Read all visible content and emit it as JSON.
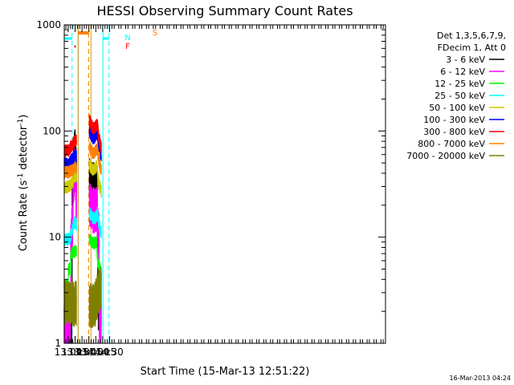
{
  "chart_data": {
    "type": "line",
    "title": "HESSI Observing Summary Count Rates",
    "xlabel": "Start Time (15-Mar-13 12:51:22)",
    "ylabel_main": "Count Rate (s",
    "ylabel_sup1": "-1",
    "ylabel_mid": " detector",
    "ylabel_sup2": "-1",
    "ylabel_end": ")",
    "y_scale": "log",
    "ylim": [
      1,
      1000
    ],
    "y_ticks": [
      {
        "v": 1,
        "label": "1"
      },
      {
        "v": 10,
        "label": "10"
      },
      {
        "v": 100,
        "label": "100"
      },
      {
        "v": 1000,
        "label": "1000"
      }
    ],
    "xlim_min": [
      771.4,
      1470
    ],
    "x_ticks": [
      {
        "m": 780,
        "label": "13:00"
      },
      {
        "m": 795,
        "label": "13:15"
      },
      {
        "m": 810,
        "label": "13:30"
      },
      {
        "m": 825,
        "label": "13:45"
      },
      {
        "m": 840,
        "label": "14:00"
      },
      {
        "m": 855,
        "label": "14:15"
      },
      {
        "m": 870,
        "label": "14:30"
      }
    ],
    "legend_header": [
      "Det 1,3,5,6,7,9,",
      "FDecim 1, Att 0"
    ],
    "series": [
      {
        "name": "3 - 6 keV",
        "color": "#000000",
        "seg1": [
          [
            771.4,
            1.4
          ],
          [
            788,
            1.4
          ],
          [
            788.5,
            15
          ],
          [
            789.5,
            30
          ],
          [
            791,
            38
          ],
          [
            793,
            55
          ],
          [
            795,
            70
          ],
          [
            797,
            45
          ],
          [
            798,
            42
          ]
        ],
        "seg2": [
          [
            826,
            35
          ],
          [
            830,
            32
          ],
          [
            834,
            31
          ],
          [
            838,
            31
          ],
          [
            842,
            32
          ],
          [
            844,
            10
          ],
          [
            845,
            2.5
          ],
          [
            846,
            2.0
          ]
        ],
        "spiky": true
      },
      {
        "name": "6 - 12 keV",
        "color": "#ff00ff",
        "seg1": [
          [
            771.4,
            1.5
          ],
          [
            785,
            1.5
          ],
          [
            785.5,
            10
          ],
          [
            789.5,
            13
          ],
          [
            791,
            30
          ],
          [
            793,
            40
          ],
          [
            795,
            48
          ],
          [
            797,
            25
          ],
          [
            798,
            22
          ]
        ],
        "seg2": [
          [
            826,
            21
          ],
          [
            830,
            19
          ],
          [
            834,
            18
          ],
          [
            838,
            18
          ],
          [
            842,
            18
          ],
          [
            844,
            15
          ],
          [
            845,
            12
          ],
          [
            847,
            10
          ],
          [
            847.5,
            1.5
          ],
          [
            852,
            1.5
          ]
        ],
        "spiky": true
      },
      {
        "name": "12 - 25 keV",
        "color": "#00ff00",
        "seg1": [
          [
            771.4,
            3.5
          ],
          [
            780,
            3.5
          ],
          [
            780.5,
            5
          ],
          [
            785,
            5
          ],
          [
            785.5,
            7
          ],
          [
            798,
            7.5
          ]
        ],
        "seg2": [
          [
            826,
            9.5
          ],
          [
            830,
            9
          ],
          [
            834,
            8.8
          ],
          [
            838,
            8.8
          ],
          [
            842,
            9
          ],
          [
            844,
            6
          ],
          [
            852,
            4.5
          ]
        ],
        "spiky": false
      },
      {
        "name": "25 - 50 keV",
        "color": "#00ffff",
        "seg1": [
          [
            771.4,
            9.5
          ],
          [
            780,
            9.5
          ],
          [
            785,
            10
          ],
          [
            789.5,
            12
          ],
          [
            791,
            13
          ],
          [
            794,
            14
          ],
          [
            798,
            13
          ]
        ],
        "seg2": [
          [
            826,
            17
          ],
          [
            830,
            16
          ],
          [
            834,
            15
          ],
          [
            838,
            15
          ],
          [
            842,
            16
          ],
          [
            844,
            17
          ],
          [
            846,
            14
          ],
          [
            849,
            12
          ],
          [
            852,
            11
          ]
        ],
        "spiky": false
      },
      {
        "name": "50 - 100 keV",
        "color": "#cccc00",
        "seg1": [
          [
            771.4,
            29
          ],
          [
            780,
            30
          ],
          [
            785,
            31
          ],
          [
            789.5,
            33
          ],
          [
            793,
            37
          ],
          [
            798,
            38
          ]
        ],
        "seg2": [
          [
            826,
            48
          ],
          [
            830,
            45
          ],
          [
            834,
            43
          ],
          [
            838,
            44
          ],
          [
            842,
            48
          ],
          [
            844,
            40
          ],
          [
            846,
            33
          ],
          [
            850,
            29
          ],
          [
            852,
            27
          ]
        ],
        "spiky": false
      },
      {
        "name": "100 - 300 keV",
        "color": "#0000ff",
        "seg1": [
          [
            771.4,
            50
          ],
          [
            780,
            48
          ],
          [
            785,
            52
          ],
          [
            789.5,
            55
          ],
          [
            793,
            57
          ],
          [
            798,
            58
          ]
        ],
        "seg2": [
          [
            826,
            100
          ],
          [
            830,
            90
          ],
          [
            834,
            85
          ],
          [
            838,
            88
          ],
          [
            842,
            95
          ],
          [
            844,
            92
          ],
          [
            846,
            75
          ],
          [
            850,
            63
          ],
          [
            852,
            58
          ]
        ],
        "spiky": false
      },
      {
        "name": "300 - 800 keV",
        "color": "#ff0000",
        "seg1": [
          [
            771.4,
            65
          ],
          [
            780,
            65
          ],
          [
            785,
            70
          ],
          [
            789.5,
            75
          ],
          [
            793,
            80
          ],
          [
            798,
            82
          ]
        ],
        "seg2": [
          [
            826,
            128
          ],
          [
            830,
            115
          ],
          [
            834,
            105
          ],
          [
            838,
            108
          ],
          [
            842,
            115
          ],
          [
            844,
            110
          ],
          [
            846,
            90
          ],
          [
            850,
            75
          ],
          [
            852,
            68
          ]
        ],
        "spiky": false
      },
      {
        "name": "800 - 7000 keV",
        "color": "#ff8000",
        "seg1": [
          [
            771.4,
            41
          ],
          [
            780,
            41
          ],
          [
            785,
            42
          ],
          [
            789.5,
            43
          ],
          [
            793,
            45
          ],
          [
            798,
            46
          ]
        ],
        "seg2": [
          [
            826,
            70
          ],
          [
            830,
            65
          ],
          [
            834,
            62
          ],
          [
            838,
            63
          ],
          [
            842,
            68
          ],
          [
            844,
            65
          ],
          [
            846,
            55
          ],
          [
            850,
            45
          ],
          [
            852,
            42
          ]
        ],
        "spiky": false
      },
      {
        "name": "7000 - 20000 keV",
        "color": "#808000",
        "seg1": [
          [
            771.4,
            2.4
          ],
          [
            780,
            2.4
          ],
          [
            785,
            2.3
          ],
          [
            798,
            2.4
          ]
        ],
        "seg2": [
          [
            826,
            2.3
          ],
          [
            838,
            2.3
          ],
          [
            842,
            2.6
          ],
          [
            844,
            3.0
          ],
          [
            852,
            3.2
          ]
        ],
        "spiky": true
      }
    ],
    "annotations": [
      {
        "text": "N",
        "color": "#00ffff"
      },
      {
        "text": "F",
        "color": "#ff0000"
      },
      {
        "text": "S",
        "color": "#ff8000"
      }
    ],
    "night_intervals": [
      {
        "x": [
          771.4,
          788.5
        ],
        "color": "#00ffff"
      },
      {
        "x": [
          855.5,
          868.7
        ],
        "color": "#00ffff"
      }
    ],
    "flare_intervals": [
      {
        "x": [
          793.5,
          796.5
        ],
        "color": "#ff0000"
      }
    ],
    "saa_intervals": [
      {
        "x": [
          801.6,
          824.6
        ],
        "color": "#ff8000"
      }
    ],
    "gap_interval": [
      798,
      826
    ],
    "timestamp": "16-Mar-2013 04:24"
  }
}
